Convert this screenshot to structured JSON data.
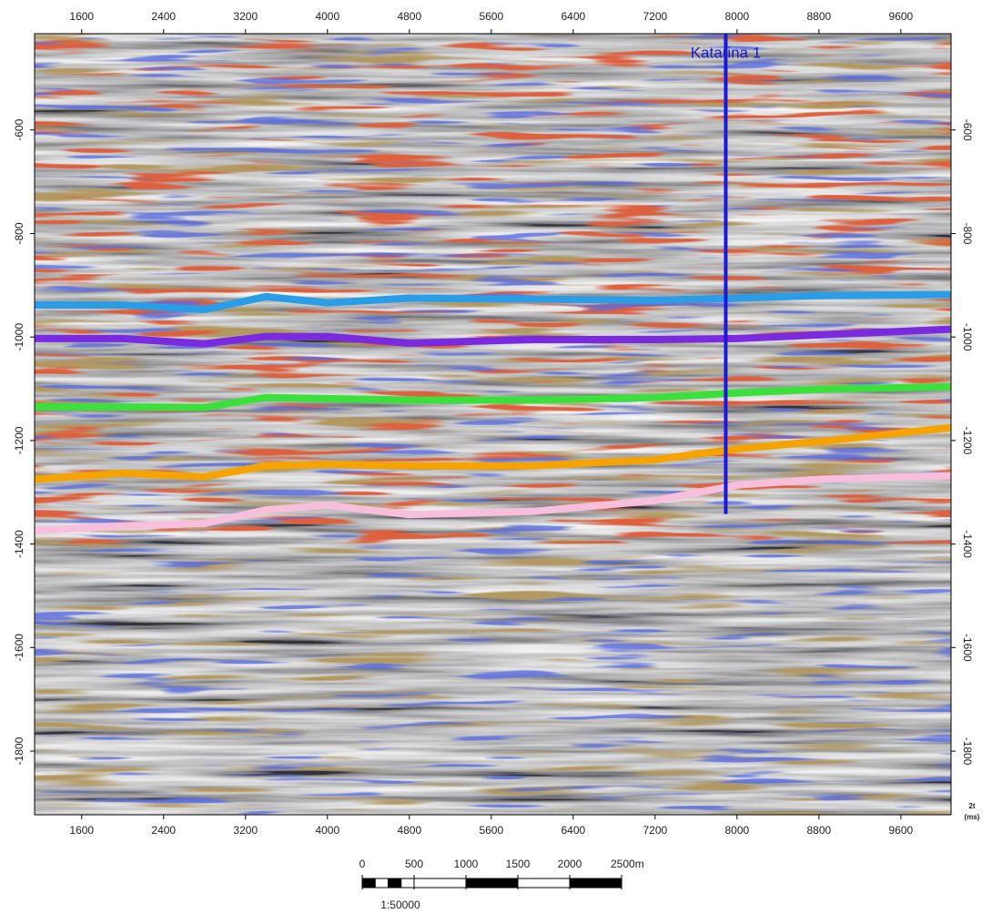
{
  "chart_data": {
    "type": "seismic",
    "xlim": [
      1140,
      10090
    ],
    "ylim": [
      -1923,
      -414
    ],
    "xticks": [
      1600,
      2400,
      3200,
      4000,
      4800,
      5600,
      6400,
      7200,
      8000,
      8800,
      9600
    ],
    "yticks": [
      -600,
      -800,
      -1000,
      -1200,
      -1400,
      -1600,
      -1800
    ],
    "ylabel": "2t",
    "yunit": "(ms)",
    "x": [
      1140,
      2000,
      2800,
      3400,
      4000,
      4800,
      6000,
      7200,
      8000,
      8800,
      10090
    ],
    "series": [
      {
        "color": "#2a9de6",
        "values": [
          -938,
          -938,
          -947,
          -922,
          -934,
          -925,
          -927,
          -929,
          -925,
          -920,
          -918
        ]
      },
      {
        "color": "#7a2be0",
        "values": [
          -1003,
          -1003,
          -1013,
          -999,
          -999,
          -1012,
          -1005,
          -1005,
          -1003,
          -996,
          -985
        ]
      },
      {
        "color": "#3ce03c",
        "values": [
          -1135,
          -1135,
          -1136,
          -1117,
          -1119,
          -1122,
          -1122,
          -1117,
          -1108,
          -1101,
          -1096
        ]
      },
      {
        "color": "#f5a300",
        "values": [
          -1275,
          -1263,
          -1270,
          -1249,
          -1246,
          -1249,
          -1249,
          -1237,
          -1216,
          -1202,
          -1175
        ]
      },
      {
        "color": "#f7bfdc",
        "values": [
          -1374,
          -1365,
          -1360,
          -1334,
          -1325,
          -1343,
          -1337,
          -1316,
          -1286,
          -1275,
          -1268
        ]
      }
    ],
    "well": {
      "name": "Katarina 1",
      "x": 7890,
      "bottom": -1342,
      "color": "#1a1ad0"
    },
    "scale_bar": {
      "ticks": [
        0,
        500,
        1000,
        1500,
        2000,
        {
          "value": 2500,
          "label": "2500m"
        }
      ],
      "ratio": "1:50000"
    }
  }
}
